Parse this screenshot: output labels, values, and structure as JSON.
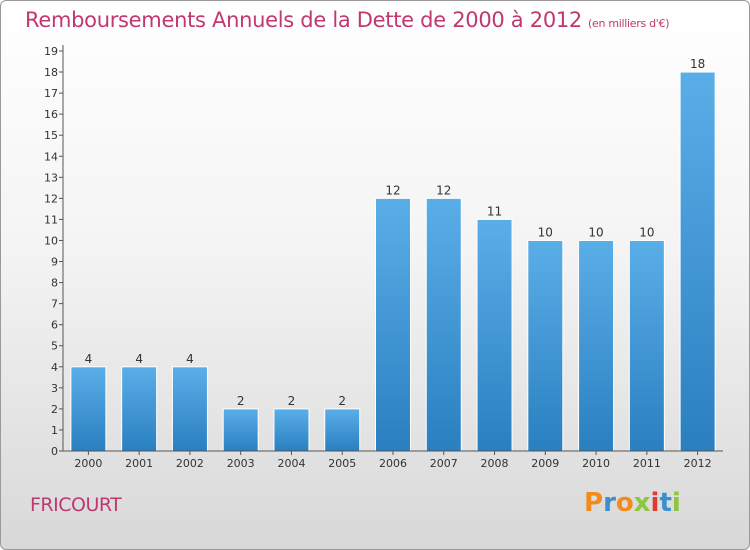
{
  "header": {
    "title": "Remboursements Annuels de la Dette de 2000 à 2012",
    "unit": "(en milliers d'€)"
  },
  "footer": {
    "commune": "FRICOURT",
    "logo_text": "Proxiti"
  },
  "colors": {
    "title": "#c0386e",
    "bar_light": "#5aaee8",
    "bar_dark": "#2a7fc0",
    "logo_letters": [
      "#f28b1e",
      "#3a8fd0",
      "#f28b1e",
      "#8dc63f",
      "#e23a2e",
      "#3a8fd0",
      "#8dc63f"
    ]
  },
  "chart_data": {
    "type": "bar",
    "title": "Remboursements Annuels de la Dette de 2000 à 2012",
    "categories": [
      "2000",
      "2001",
      "2002",
      "2003",
      "2004",
      "2005",
      "2006",
      "2007",
      "2008",
      "2009",
      "2010",
      "2011",
      "2012"
    ],
    "values": [
      4,
      4,
      4,
      2,
      2,
      2,
      12,
      12,
      11,
      10,
      10,
      10,
      18
    ],
    "ylim": [
      0,
      19
    ],
    "yticks": [
      0,
      1,
      2,
      3,
      4,
      5,
      6,
      7,
      8,
      9,
      10,
      11,
      12,
      13,
      14,
      15,
      16,
      17,
      18,
      19
    ],
    "xlabel": "",
    "ylabel": "",
    "grid": false,
    "data_labels": true
  }
}
